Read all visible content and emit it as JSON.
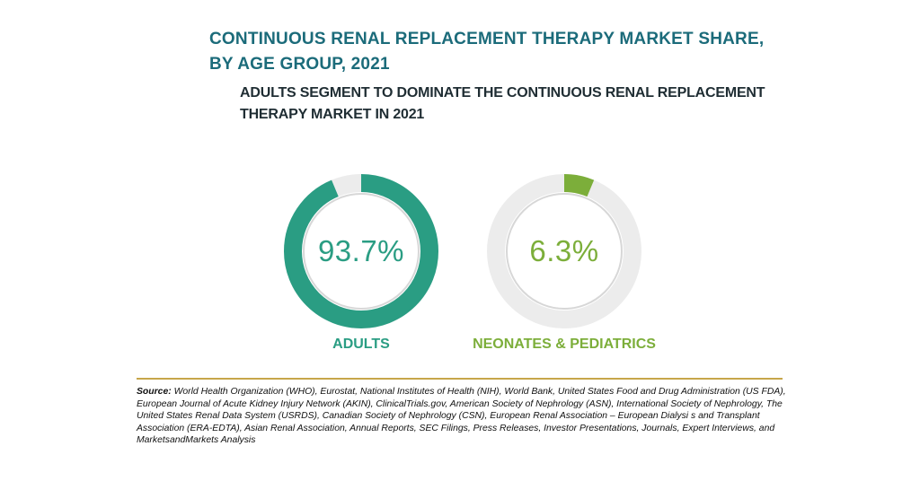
{
  "header": {
    "title_line1": "CONTINUOUS RENAL REPLACEMENT THERAPY MARKET SHARE,",
    "title_line2": "BY AGE GROUP, 2021",
    "subtitle_line1": "ADULTS SEGMENT TO DOMINATE THE CONTINUOUS RENAL REPLACEMENT",
    "subtitle_line2": "THERAPY MARKET IN 2021"
  },
  "chart_data": {
    "type": "pie",
    "subtype": "donut-pair",
    "unit": "%",
    "title": "CONTINUOUS RENAL REPLACEMENT THERAPY MARKET SHARE, BY AGE GROUP, 2021",
    "categories": [
      "ADULTS",
      "NEONATES & PEDIATRICS"
    ],
    "values": [
      93.7,
      6.3
    ],
    "value_labels": [
      "93.7%",
      "6.3%"
    ],
    "colors": {
      "adults": "#2a9d83",
      "neonates": "#7cae3a",
      "track": "#ececec",
      "title": "#1b6b7a",
      "divider": "#c7a64a"
    }
  },
  "footer": {
    "source_label": "Source:",
    "source_text": "World Health Organization (WHO), Eurostat, National Institutes of Health (NIH), World Bank, United States Food and Drug Administration (US FDA), European Journal of Acute Kidney Injury Network (AKIN), ClinicalTrials.gov, American Society of Nephrology (ASN), International Society of Nephrology, The United States Renal Data System (USRDS), Canadian Society of Nephrology (CSN), European Renal Association – European Dialysi s and Transplant Association (ERA-EDTA), Asian Renal Association, Annual Reports, SEC Filings, Press Releases, Investor Presentations, Journals, Expert Interviews, and MarketsandMarkets Analysis"
  }
}
